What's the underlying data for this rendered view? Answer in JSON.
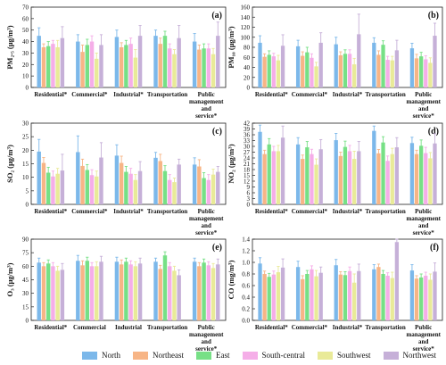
{
  "colors": {
    "North": "#7cb8ea",
    "Northeast": "#f7b586",
    "East": "#77e086",
    "South-central": "#f5aee8",
    "Southwest": "#e9ea98",
    "Northwest": "#c6b0d8"
  },
  "legend": [
    "North",
    "Northeast",
    "East",
    "South-central",
    "Southwest",
    "Northwest"
  ],
  "chart_data": [
    {
      "type": "bar",
      "panel": "(a)",
      "ylabel": "PM₂.₅ (μg/m³)",
      "ylim": [
        0,
        70
      ],
      "yticks": [
        0,
        10,
        20,
        30,
        40,
        50,
        60,
        70
      ],
      "categories": [
        "Residential*",
        "Commercial*",
        "Industrial*",
        "Transportation",
        "Public management and service*"
      ],
      "series": [
        {
          "name": "North",
          "values": [
            45,
            40,
            44,
            45,
            40
          ],
          "errors": [
            7,
            6,
            6,
            5,
            7
          ]
        },
        {
          "name": "Northeast",
          "values": [
            35,
            31,
            35,
            38,
            33
          ],
          "errors": [
            3,
            6,
            4,
            5,
            4
          ]
        },
        {
          "name": "East",
          "values": [
            36,
            37,
            37,
            45,
            34
          ],
          "errors": [
            4,
            5,
            4,
            4,
            4
          ]
        },
        {
          "name": "South-central",
          "values": [
            38,
            40,
            38,
            34,
            34
          ],
          "errors": [
            3,
            5,
            5,
            4,
            4
          ]
        },
        {
          "name": "Southwest",
          "values": [
            35,
            25,
            26,
            29,
            29
          ],
          "errors": [
            6,
            5,
            7,
            4,
            5
          ]
        },
        {
          "name": "Northwest",
          "values": [
            43,
            37,
            45,
            43,
            45
          ],
          "errors": [
            10,
            9,
            9,
            11,
            12
          ]
        }
      ]
    },
    {
      "type": "bar",
      "panel": "(b)",
      "ylabel": "PM₁₀ (μg/m³)",
      "ylim": [
        0,
        160
      ],
      "yticks": [
        0,
        20,
        40,
        60,
        80,
        100,
        120,
        140,
        160
      ],
      "categories": [
        "Residential*",
        "Commercial*",
        "Industrial*",
        "Transportation",
        "Public management and service*"
      ],
      "series": [
        {
          "name": "North",
          "values": [
            89,
            82,
            86,
            89,
            78
          ],
          "errors": [
            14,
            12,
            14,
            10,
            10
          ]
        },
        {
          "name": "Northeast",
          "values": [
            61,
            63,
            64,
            65,
            58
          ],
          "errors": [
            6,
            8,
            7,
            8,
            8
          ]
        },
        {
          "name": "East",
          "values": [
            65,
            70,
            67,
            85,
            62
          ],
          "errors": [
            8,
            10,
            8,
            8,
            8
          ]
        },
        {
          "name": "South-central",
          "values": [
            62,
            59,
            67,
            55,
            56
          ],
          "errors": [
            6,
            8,
            8,
            7,
            7
          ]
        },
        {
          "name": "Southwest",
          "values": [
            54,
            42,
            46,
            54,
            49
          ],
          "errors": [
            10,
            8,
            12,
            8,
            10
          ]
        },
        {
          "name": "Northwest",
          "values": [
            83,
            89,
            106,
            74,
            103
          ],
          "errors": [
            22,
            20,
            40,
            20,
            25
          ]
        }
      ]
    },
    {
      "type": "bar",
      "panel": "(c)",
      "ylabel": "SO₂ (μg/m³)",
      "ylim": [
        0,
        30
      ],
      "yticks": [
        0,
        5,
        10,
        15,
        20,
        25,
        30
      ],
      "categories": [
        "Residential*",
        "Commercial*",
        "Industrial*",
        "Transportation",
        "Public management and service*"
      ],
      "series": [
        {
          "name": "North",
          "values": [
            19.5,
            19.3,
            18,
            17.2,
            14.7
          ],
          "errors": [
            4.5,
            6,
            4,
            2,
            2.5
          ]
        },
        {
          "name": "Northeast",
          "values": [
            15.3,
            14.2,
            15.3,
            16,
            14
          ],
          "errors": [
            2,
            2.5,
            2.5,
            2.5,
            2.5
          ]
        },
        {
          "name": "East",
          "values": [
            11.7,
            12.7,
            12,
            12.3,
            9.7
          ],
          "errors": [
            2,
            2,
            2,
            2,
            2
          ]
        },
        {
          "name": "South-central",
          "values": [
            10.3,
            10.8,
            11.3,
            9,
            9
          ],
          "errors": [
            2,
            2,
            2,
            2,
            2
          ]
        },
        {
          "name": "Southwest",
          "values": [
            11.3,
            10.3,
            9,
            8.2,
            11
          ],
          "errors": [
            2,
            2,
            2,
            1.5,
            2
          ]
        },
        {
          "name": "Northwest",
          "values": [
            12.5,
            17.3,
            12.3,
            14.7,
            12
          ],
          "errors": [
            6,
            5.5,
            3.5,
            2,
            2
          ]
        }
      ]
    },
    {
      "type": "bar",
      "panel": "(d)",
      "ylabel": "NO₂ (μg/m³)",
      "ylim": [
        0,
        42
      ],
      "yticks": [
        0,
        3,
        6,
        9,
        12,
        15,
        18,
        21,
        24,
        27,
        30,
        33,
        36,
        39,
        42
      ],
      "categories": [
        "Residential*",
        "Commercial*",
        "Industrial*",
        "Transportation",
        "Public management and service*"
      ],
      "series": [
        {
          "name": "North",
          "values": [
            37.5,
            31,
            33.2,
            38,
            31.7
          ],
          "errors": [
            3.5,
            3.5,
            3.5,
            2.5,
            3
          ]
        },
        {
          "name": "Northeast",
          "values": [
            26,
            23.5,
            25,
            26.4,
            26
          ],
          "errors": [
            2,
            2,
            2,
            2,
            2
          ]
        },
        {
          "name": "East",
          "values": [
            31,
            29.5,
            29.7,
            32,
            30.3
          ],
          "errors": [
            3,
            3,
            3,
            3,
            3
          ]
        },
        {
          "name": "South-central",
          "values": [
            27.5,
            26,
            27.5,
            22.5,
            26.5
          ],
          "errors": [
            2.5,
            2.5,
            3,
            2.5,
            3
          ]
        },
        {
          "name": "Southwest",
          "values": [
            27.5,
            20.5,
            23.5,
            26,
            23.8
          ],
          "errors": [
            3,
            3,
            4,
            3,
            3
          ]
        },
        {
          "name": "Northwest",
          "values": [
            34.5,
            28.5,
            27.5,
            29.5,
            31.5
          ],
          "errors": [
            6,
            5,
            5,
            5,
            5
          ]
        }
      ]
    },
    {
      "type": "bar",
      "panel": "(e)",
      "ylabel": "O₃ (μg/m³)",
      "ylim": [
        0,
        90
      ],
      "yticks": [
        0,
        15,
        30,
        45,
        60,
        75,
        90
      ],
      "categories": [
        "Residential*",
        "Commercial",
        "Industrial",
        "Transportation",
        "Public management and service*"
      ],
      "series": [
        {
          "name": "North",
          "values": [
            64,
            66,
            65,
            65,
            65
          ],
          "errors": [
            5,
            6,
            5,
            4,
            4
          ]
        },
        {
          "name": "Northeast",
          "values": [
            60,
            61,
            62,
            57,
            60
          ],
          "errors": [
            4,
            5,
            5,
            4,
            4
          ]
        },
        {
          "name": "East",
          "values": [
            63,
            66,
            65,
            72,
            64
          ],
          "errors": [
            4,
            4,
            4,
            4,
            4
          ]
        },
        {
          "name": "South-central",
          "values": [
            60,
            60,
            62,
            60,
            61
          ],
          "errors": [
            4,
            4,
            4,
            4,
            4
          ]
        },
        {
          "name": "Southwest",
          "values": [
            55,
            60,
            60,
            55,
            58
          ],
          "errors": [
            5,
            5,
            5,
            5,
            5
          ]
        },
        {
          "name": "Northwest",
          "values": [
            56,
            65,
            63,
            50,
            62
          ],
          "errors": [
            7,
            6,
            6,
            6,
            6
          ]
        }
      ]
    },
    {
      "type": "bar",
      "panel": "(f)",
      "ylabel": "CO (mg/m³)",
      "ylim": [
        0,
        1.4
      ],
      "yticks": [
        0,
        0.2,
        0.4,
        0.6,
        0.8,
        1.0,
        1.2,
        1.4
      ],
      "categories": [
        "Residential*",
        "Commercial*",
        "Industrial*",
        "Transportation",
        "Public management and service*"
      ],
      "series": [
        {
          "name": "North",
          "values": [
            0.98,
            0.92,
            0.95,
            0.88,
            0.86
          ],
          "errors": [
            0.1,
            0.1,
            0.1,
            0.08,
            0.1
          ]
        },
        {
          "name": "Northeast",
          "values": [
            0.8,
            0.71,
            0.79,
            0.92,
            0.72
          ],
          "errors": [
            0.05,
            0.06,
            0.05,
            0.05,
            0.05
          ]
        },
        {
          "name": "East",
          "values": [
            0.75,
            0.8,
            0.78,
            0.8,
            0.74
          ],
          "errors": [
            0.06,
            0.06,
            0.06,
            0.06,
            0.06
          ]
        },
        {
          "name": "South-central",
          "values": [
            0.79,
            0.88,
            0.85,
            0.77,
            0.77
          ],
          "errors": [
            0.06,
            0.06,
            0.07,
            0.05,
            0.06
          ]
        },
        {
          "name": "Southwest",
          "values": [
            0.83,
            0.76,
            0.65,
            0.73,
            0.7
          ],
          "errors": [
            0.1,
            0.1,
            0.15,
            0.1,
            0.1
          ]
        },
        {
          "name": "Northwest",
          "values": [
            0.91,
            0.82,
            0.85,
            1.35,
            0.84
          ],
          "errors": [
            0.15,
            0.1,
            0.12,
            0.25,
            0.15
          ]
        }
      ]
    }
  ]
}
